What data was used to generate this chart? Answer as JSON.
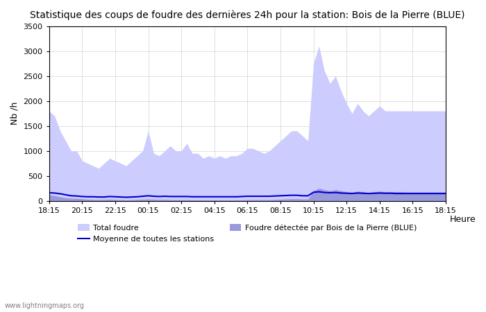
{
  "title": "Statistique des coups de foudre des dernières 24h pour la station: Bois de la Pierre (BLUE)",
  "xlabel": "Heure",
  "ylabel": "Nb /h",
  "ylim": [
    0,
    3500
  ],
  "yticks": [
    0,
    500,
    1000,
    1500,
    2000,
    2500,
    3000,
    3500
  ],
  "xtick_labels": [
    "18:15",
    "20:15",
    "22:15",
    "00:15",
    "02:15",
    "04:15",
    "06:15",
    "08:15",
    "10:15",
    "12:15",
    "14:15",
    "16:15",
    "18:15"
  ],
  "color_total": "#ccccff",
  "color_detected": "#9999dd",
  "color_mean": "#0000cc",
  "background_color": "#ffffff",
  "watermark": "www.lightningmaps.org",
  "legend_total": "Total foudre",
  "legend_detected": "Foudre détectée par Bois de la Pierre (BLUE)",
  "legend_mean": "Moyenne de toutes les stations",
  "total_foudre": [
    1800,
    1700,
    1400,
    1200,
    1000,
    1000,
    800,
    750,
    700,
    650,
    750,
    850,
    800,
    750,
    700,
    800,
    900,
    1000,
    1400,
    950,
    900,
    1000,
    1100,
    1000,
    1000,
    1150,
    950,
    950,
    850,
    900,
    850,
    900,
    850,
    900,
    900,
    950,
    1050,
    1050,
    1000,
    950,
    1000,
    1100,
    1200,
    1300,
    1400,
    1400,
    1300,
    1200,
    2750,
    3100,
    2600,
    2350,
    2500,
    2200,
    1950,
    1750,
    1950,
    1800,
    1700,
    1800,
    1900,
    1800,
    1800,
    1800,
    1800,
    1800,
    1800,
    1800,
    1800,
    1800,
    1800,
    1800,
    1800
  ],
  "detected_foudre": [
    120,
    100,
    80,
    60,
    50,
    50,
    40,
    30,
    25,
    20,
    25,
    30,
    25,
    20,
    15,
    20,
    25,
    30,
    35,
    30,
    25,
    25,
    20,
    20,
    20,
    20,
    15,
    15,
    15,
    15,
    15,
    15,
    15,
    15,
    15,
    15,
    20,
    20,
    20,
    20,
    20,
    25,
    30,
    35,
    40,
    40,
    35,
    35,
    200,
    250,
    220,
    200,
    220,
    200,
    180,
    170,
    190,
    180,
    160,
    180,
    190,
    180,
    180,
    180,
    180,
    175,
    175,
    175,
    175,
    175,
    175,
    175,
    175
  ],
  "mean_line": [
    160,
    155,
    140,
    120,
    100,
    95,
    85,
    80,
    80,
    75,
    75,
    85,
    80,
    75,
    70,
    75,
    80,
    90,
    100,
    90,
    85,
    90,
    85,
    85,
    85,
    85,
    80,
    80,
    80,
    80,
    80,
    80,
    80,
    80,
    80,
    85,
    90,
    90,
    90,
    90,
    90,
    95,
    100,
    105,
    110,
    110,
    100,
    100,
    170,
    180,
    165,
    160,
    165,
    155,
    150,
    145,
    155,
    150,
    145,
    150,
    155,
    150,
    150,
    145,
    145,
    145,
    145,
    145,
    145,
    145,
    145,
    145,
    145
  ]
}
